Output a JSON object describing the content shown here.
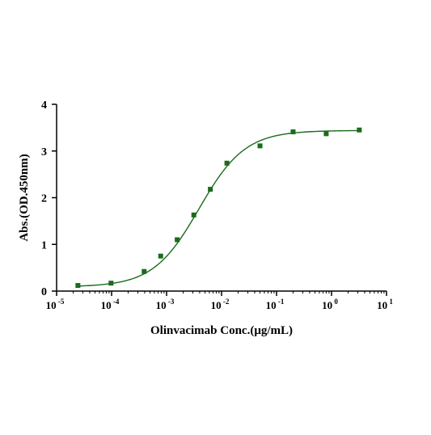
{
  "chart_data": {
    "type": "scatter",
    "title": "",
    "xlabel": "Olinvacimab Conc.(μg/mL)",
    "ylabel": "Abs.(OD.450nm)",
    "x_scale": "log10",
    "xlim": [
      1e-05,
      10
    ],
    "ylim": [
      0,
      4
    ],
    "x_ticks": [
      {
        "value": 1e-05,
        "base": "10",
        "exp": "-5"
      },
      {
        "value": 0.0001,
        "base": "10",
        "exp": "-4"
      },
      {
        "value": 0.001,
        "base": "10",
        "exp": "-3"
      },
      {
        "value": 0.01,
        "base": "10",
        "exp": "-2"
      },
      {
        "value": 0.1,
        "base": "10",
        "exp": "-1"
      },
      {
        "value": 1,
        "base": "10",
        "exp": "0"
      },
      {
        "value": 10,
        "base": "10",
        "exp": "1"
      }
    ],
    "y_ticks": [
      0,
      1,
      2,
      3,
      4
    ],
    "grid": false,
    "legend": "none",
    "color": "#1b6b1b",
    "series": [
      {
        "points": [
          {
            "x": 2.44e-05,
            "y": 0.12
          },
          {
            "x": 9.77e-05,
            "y": 0.17
          },
          {
            "x": 0.000391,
            "y": 0.42
          },
          {
            "x": 0.000781,
            "y": 0.75
          },
          {
            "x": 0.00156,
            "y": 1.1
          },
          {
            "x": 0.00313,
            "y": 1.63
          },
          {
            "x": 0.00625,
            "y": 2.18
          },
          {
            "x": 0.0125,
            "y": 2.74
          },
          {
            "x": 0.05,
            "y": 3.11
          },
          {
            "x": 0.2,
            "y": 3.41
          },
          {
            "x": 0.8,
            "y": 3.37
          },
          {
            "x": 3.2,
            "y": 3.45
          }
        ],
        "fit": {
          "model": "4PL",
          "bottom": 0.09,
          "top": 3.44,
          "ec50": 0.0039,
          "hill": 1.04
        }
      }
    ]
  }
}
